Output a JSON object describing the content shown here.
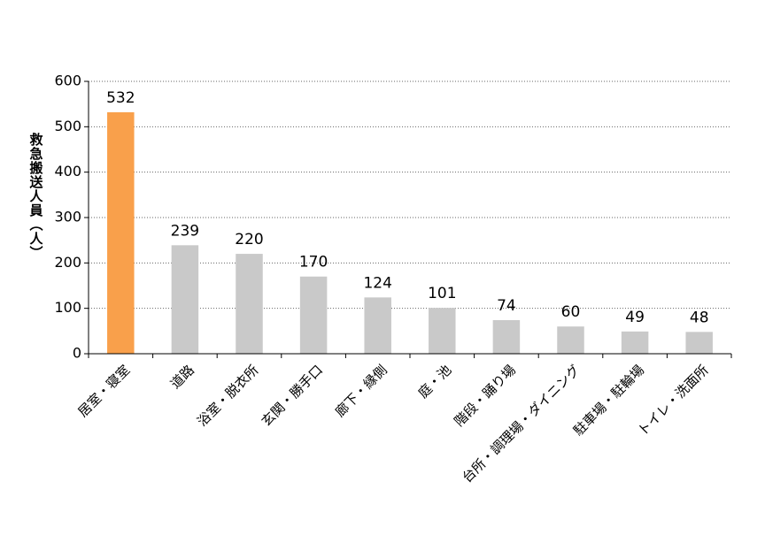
{
  "chart_data": {
    "type": "bar",
    "y_label": "救急搬送人員（人）",
    "categories": [
      "居室・寝室",
      "道路",
      "浴室・脱衣所",
      "玄関・勝手口",
      "廊下・縁側",
      "庭・池",
      "階段・踊り場",
      "台所・調理場・ダイニング",
      "駐車場・駐輪場",
      "トイレ・洗面所"
    ],
    "values": [
      532,
      239,
      220,
      170,
      124,
      101,
      74,
      60,
      49,
      48
    ],
    "colors": [
      "#f9a04b",
      "#c9c9c9",
      "#c9c9c9",
      "#c9c9c9",
      "#c9c9c9",
      "#c9c9c9",
      "#c9c9c9",
      "#c9c9c9",
      "#c9c9c9",
      "#c9c9c9"
    ],
    "ylim": [
      0,
      600
    ],
    "yticks": [
      0,
      100,
      200,
      300,
      400,
      500,
      600
    ],
    "grid": true
  }
}
